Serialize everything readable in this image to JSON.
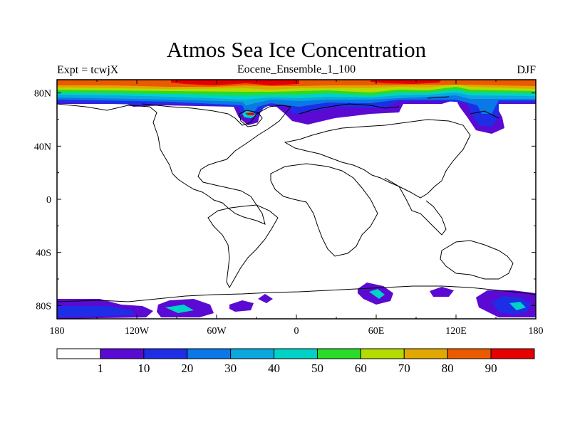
{
  "title": "Atmos Sea Ice Concentration",
  "subtitle_left": "Expt = tcwjX",
  "subtitle_center": "Eocene_Ensemble_1_100",
  "subtitle_right": "DJF",
  "map": {
    "projection": "cylindrical-equidistant",
    "lon_range": [
      -180,
      180
    ],
    "lat_range": [
      -90,
      90
    ],
    "x_ticks": [
      {
        "lon": -180,
        "label": "180"
      },
      {
        "lon": -120,
        "label": "120W"
      },
      {
        "lon": -60,
        "label": "60W"
      },
      {
        "lon": 0,
        "label": "0"
      },
      {
        "lon": 60,
        "label": "60E"
      },
      {
        "lon": 120,
        "label": "120E"
      },
      {
        "lon": 180,
        "label": "180"
      }
    ],
    "y_ticks": [
      {
        "lat": 80,
        "label": "80N"
      },
      {
        "lat": 40,
        "label": "40N"
      },
      {
        "lat": 0,
        "label": "0"
      },
      {
        "lat": -40,
        "label": "40S"
      },
      {
        "lat": -80,
        "label": "80S"
      }
    ]
  },
  "colorbar": {
    "colors": [
      "#ffffff",
      "#5a0ad2",
      "#1e2ee6",
      "#0a78e6",
      "#0aa8dc",
      "#00d2c8",
      "#2adc28",
      "#b4dc00",
      "#e0a800",
      "#ec5a00",
      "#e60000"
    ],
    "labels": [
      "1",
      "10",
      "20",
      "30",
      "40",
      "50",
      "60",
      "70",
      "80",
      "90"
    ]
  },
  "ice_palette": {
    "white": "#ffffff",
    "purple": "#5a0ad2",
    "blue": "#1e2ee6",
    "mid_blue": "#0a78e6",
    "light_blue": "#0aa8dc",
    "cyan": "#00d2c8",
    "green": "#2adc28",
    "yellow_green": "#b4dc00",
    "orange": "#e0a800",
    "dark_orange": "#ec5a00",
    "red": "#e60000"
  }
}
